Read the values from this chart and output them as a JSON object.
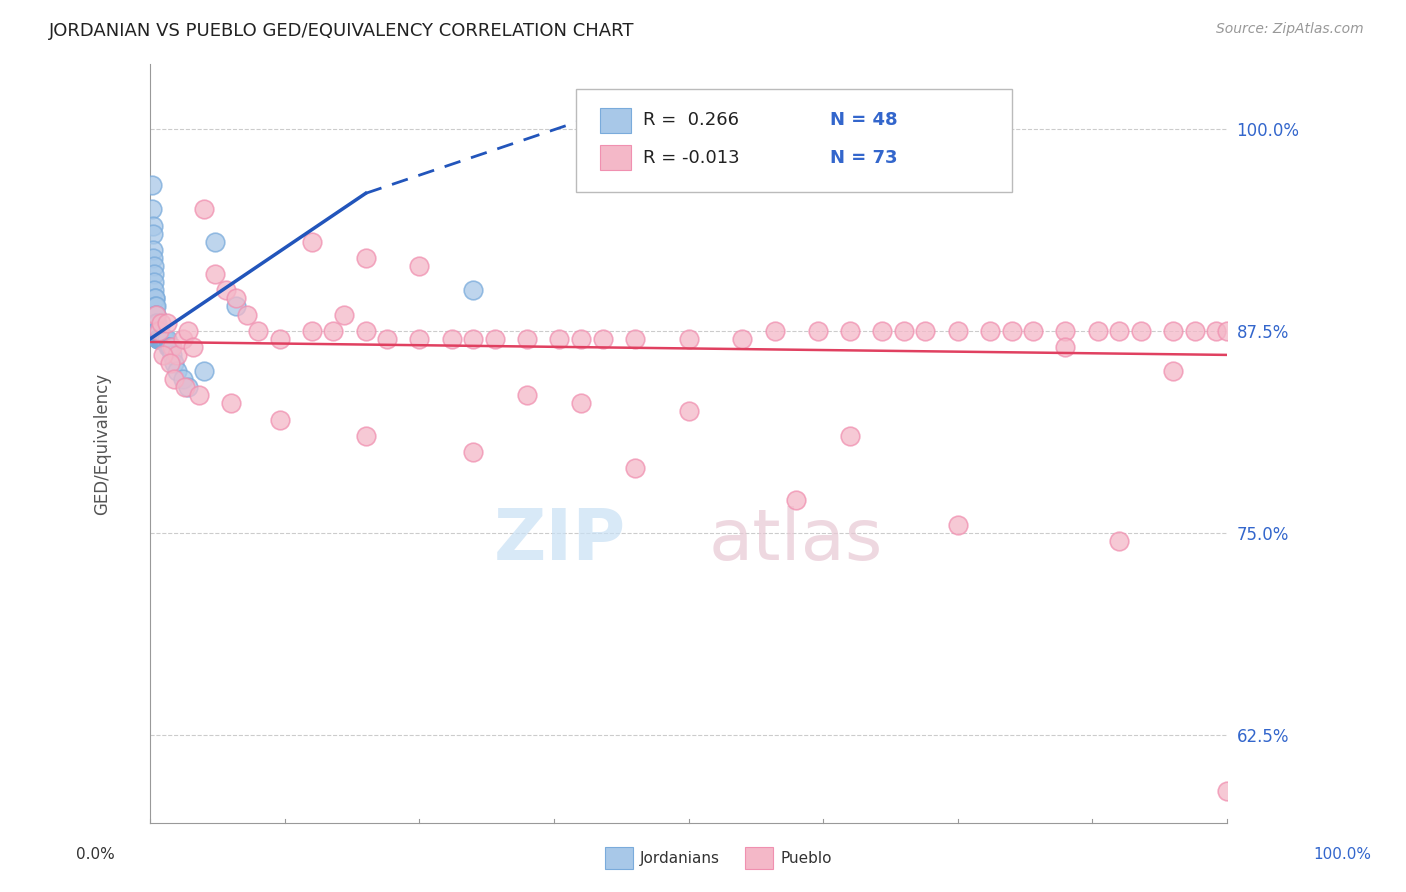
{
  "title": "JORDANIAN VS PUEBLO GED/EQUIVALENCY CORRELATION CHART",
  "source": "Source: ZipAtlas.com",
  "ylabel": "GED/Equivalency",
  "yticks": [
    62.5,
    75.0,
    87.5,
    100.0
  ],
  "ytick_labels": [
    "62.5%",
    "75.0%",
    "87.5%",
    "100.0%"
  ],
  "xrange": [
    0.0,
    100.0
  ],
  "yrange": [
    57.0,
    104.0
  ],
  "blue_color": "#a8c8e8",
  "pink_color": "#f4b8c8",
  "blue_edge_color": "#7aabdb",
  "pink_edge_color": "#f090b0",
  "blue_line_color": "#2255bb",
  "pink_line_color": "#e04060",
  "jordanians_x": [
    0.15,
    0.18,
    0.2,
    0.22,
    0.25,
    0.28,
    0.3,
    0.32,
    0.35,
    0.38,
    0.4,
    0.42,
    0.45,
    0.48,
    0.5,
    0.52,
    0.55,
    0.58,
    0.6,
    0.62,
    0.65,
    0.68,
    0.7,
    0.72,
    0.75,
    0.8,
    0.85,
    0.9,
    0.95,
    1.0,
    1.05,
    1.1,
    1.2,
    1.3,
    1.4,
    1.5,
    1.6,
    1.7,
    1.8,
    2.0,
    2.2,
    2.5,
    3.0,
    3.5,
    5.0,
    6.0,
    8.0,
    30.0
  ],
  "jordanians_y": [
    96.5,
    95.0,
    94.0,
    93.5,
    92.5,
    92.0,
    91.5,
    91.0,
    90.5,
    90.0,
    89.5,
    89.5,
    89.0,
    89.0,
    88.5,
    88.5,
    88.0,
    88.0,
    87.5,
    87.5,
    87.5,
    87.5,
    87.0,
    87.0,
    87.0,
    87.0,
    87.0,
    87.0,
    87.0,
    87.0,
    87.0,
    87.0,
    87.0,
    87.0,
    87.0,
    87.0,
    86.5,
    86.5,
    86.5,
    86.0,
    85.5,
    85.0,
    84.5,
    84.0,
    85.0,
    93.0,
    89.0,
    90.0
  ],
  "pueblo_x": [
    0.5,
    0.8,
    1.0,
    1.5,
    2.0,
    2.5,
    3.0,
    3.5,
    4.0,
    5.0,
    6.0,
    7.0,
    8.0,
    9.0,
    10.0,
    12.0,
    15.0,
    17.0,
    18.0,
    20.0,
    22.0,
    25.0,
    28.0,
    30.0,
    32.0,
    35.0,
    38.0,
    40.0,
    42.0,
    45.0,
    50.0,
    55.0,
    58.0,
    62.0,
    65.0,
    68.0,
    70.0,
    72.0,
    75.0,
    78.0,
    80.0,
    82.0,
    85.0,
    88.0,
    90.0,
    92.0,
    95.0,
    97.0,
    99.0,
    100.0,
    1.2,
    1.8,
    2.2,
    3.2,
    4.5,
    7.5,
    12.0,
    20.0,
    30.0,
    45.0,
    60.0,
    75.0,
    90.0,
    15.0,
    20.0,
    25.0,
    35.0,
    40.0,
    50.0,
    65.0,
    85.0,
    95.0,
    100.0
  ],
  "pueblo_y": [
    88.5,
    87.5,
    88.0,
    88.0,
    86.5,
    86.0,
    87.0,
    87.5,
    86.5,
    95.0,
    91.0,
    90.0,
    89.5,
    88.5,
    87.5,
    87.0,
    87.5,
    87.5,
    88.5,
    87.5,
    87.0,
    87.0,
    87.0,
    87.0,
    87.0,
    87.0,
    87.0,
    87.0,
    87.0,
    87.0,
    87.0,
    87.0,
    87.5,
    87.5,
    87.5,
    87.5,
    87.5,
    87.5,
    87.5,
    87.5,
    87.5,
    87.5,
    87.5,
    87.5,
    87.5,
    87.5,
    87.5,
    87.5,
    87.5,
    87.5,
    86.0,
    85.5,
    84.5,
    84.0,
    83.5,
    83.0,
    82.0,
    81.0,
    80.0,
    79.0,
    77.0,
    75.5,
    74.5,
    93.0,
    92.0,
    91.5,
    83.5,
    83.0,
    82.5,
    81.0,
    86.5,
    85.0,
    59.0
  ]
}
